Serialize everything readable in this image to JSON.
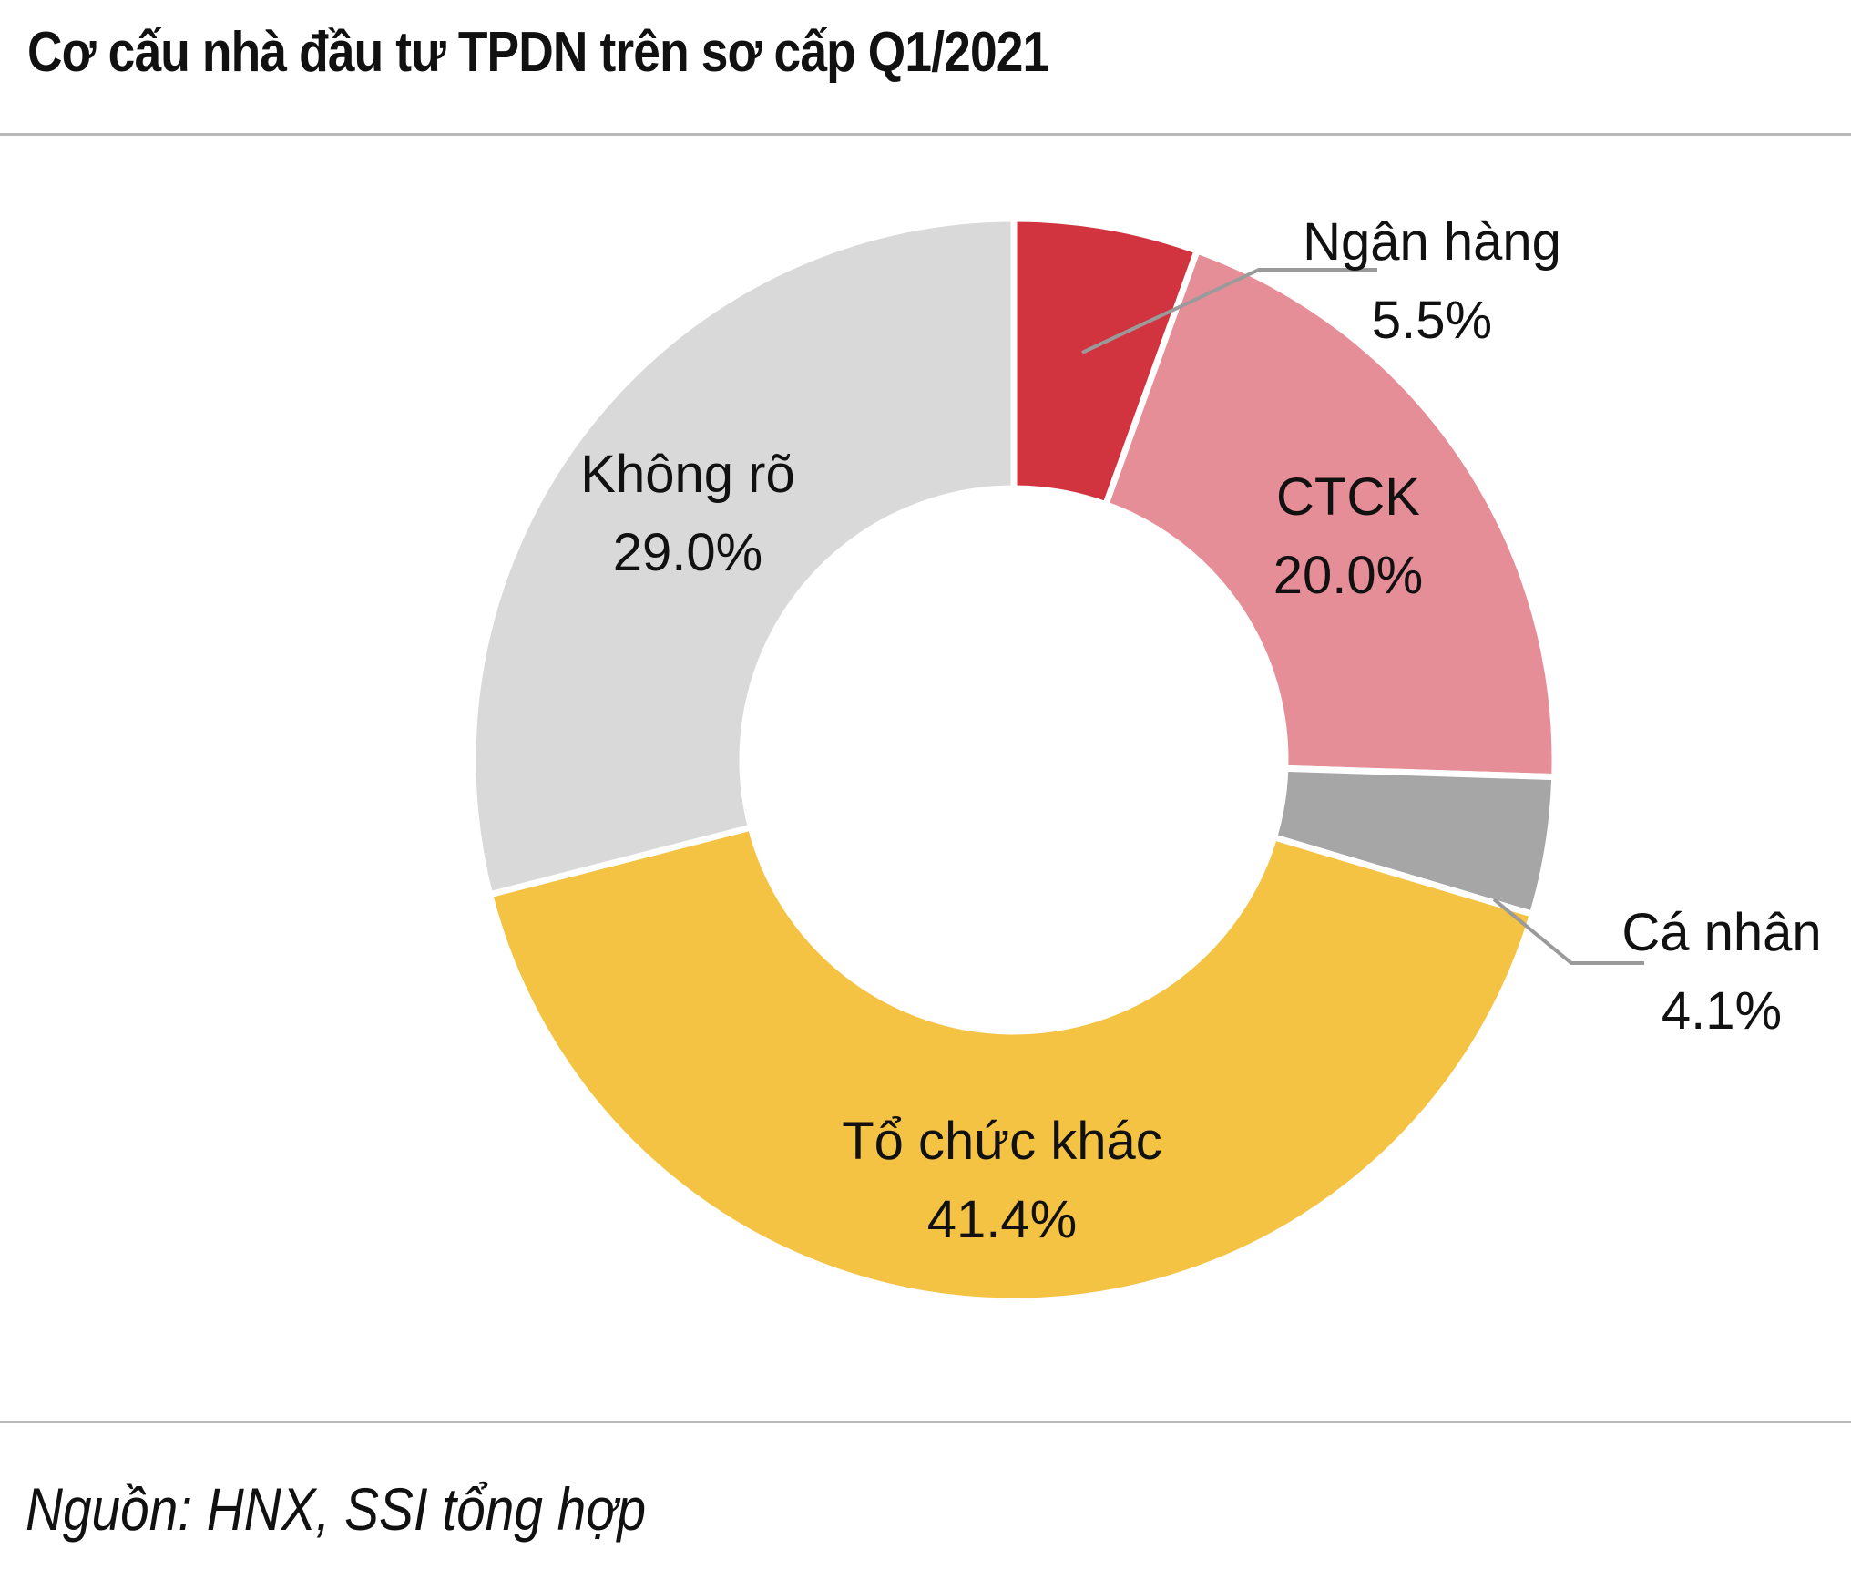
{
  "title": "Cơ cấu nhà đầu tư TPDN trên sơ cấp Q1/2021",
  "source": "Nguồn: HNX, SSI tổng hợp",
  "chart_data": {
    "type": "pie",
    "style": "donut",
    "start_angle_deg": 0,
    "direction": "clockwise",
    "slices": [
      {
        "label": "Ngân hàng",
        "value": 5.5,
        "display": "5.5%",
        "color": "#d1343f",
        "label_position": "outside"
      },
      {
        "label": "CTCK",
        "value": 20.0,
        "display": "20.0%",
        "color": "#e68e98",
        "label_position": "inside"
      },
      {
        "label": "Cá nhân",
        "value": 4.1,
        "display": "4.1%",
        "color": "#a6a6a6",
        "label_position": "outside"
      },
      {
        "label": "Tổ chức khác",
        "value": 41.4,
        "display": "41.4%",
        "color": "#f4c343",
        "label_position": "inside"
      },
      {
        "label": "Không rõ",
        "value": 29.0,
        "display": "29.0%",
        "color": "#d9d9d9",
        "label_position": "inside"
      }
    ]
  }
}
